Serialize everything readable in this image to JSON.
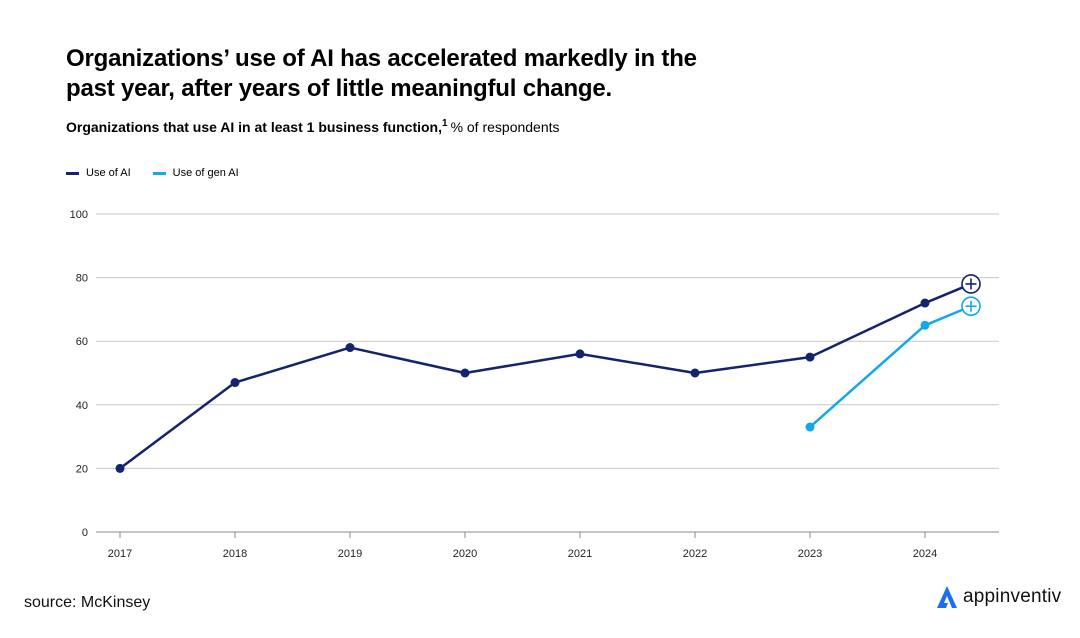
{
  "header": {
    "title": "Organizations’ use of AI has accelerated markedly in the past year, after years of little meaningful change.",
    "subtitle_bold": "Organizations that use AI in at least 1 business function,",
    "subtitle_sup": "1",
    "subtitle_rest": "% of respondents"
  },
  "colors": {
    "ai": "#13236e",
    "gen_ai": "#14a8e8",
    "grid": "#c8c8c8",
    "axis": "#888888",
    "brand": "#1d6ff2"
  },
  "chart_data": {
    "type": "line",
    "title": "Organizations’ use of AI has accelerated markedly in the past year, after years of little meaningful change.",
    "subtitle": "Organizations that use AI in at least 1 business function, % of respondents",
    "xlabel": "",
    "ylabel": "",
    "categories": [
      "2017",
      "2018",
      "2019",
      "2020",
      "2021",
      "2022",
      "2023",
      "2024"
    ],
    "yticks": [
      "0",
      "20",
      "40",
      "60",
      "80",
      "100"
    ],
    "ylim": [
      0,
      100
    ],
    "grid": true,
    "legend_position": "top-left",
    "series": [
      {
        "name": "Use of AI",
        "color": "#13236e",
        "points": [
          {
            "x": 2017,
            "y": 20
          },
          {
            "x": 2018,
            "y": 47
          },
          {
            "x": 2019,
            "y": 58
          },
          {
            "x": 2020,
            "y": 50
          },
          {
            "x": 2021,
            "y": 56
          },
          {
            "x": 2022,
            "y": 50
          },
          {
            "x": 2023,
            "y": 55
          },
          {
            "x": 2024,
            "y": 72
          },
          {
            "x": 2024.4,
            "y": 78,
            "marker": "plus"
          }
        ]
      },
      {
        "name": "Use of gen AI",
        "color": "#14a8e8",
        "points": [
          {
            "x": 2023,
            "y": 33
          },
          {
            "x": 2024,
            "y": 65
          },
          {
            "x": 2024.4,
            "y": 71,
            "marker": "plus"
          }
        ]
      }
    ]
  },
  "footer": {
    "source": "source: McKinsey",
    "brand_name": "appinventiv"
  }
}
